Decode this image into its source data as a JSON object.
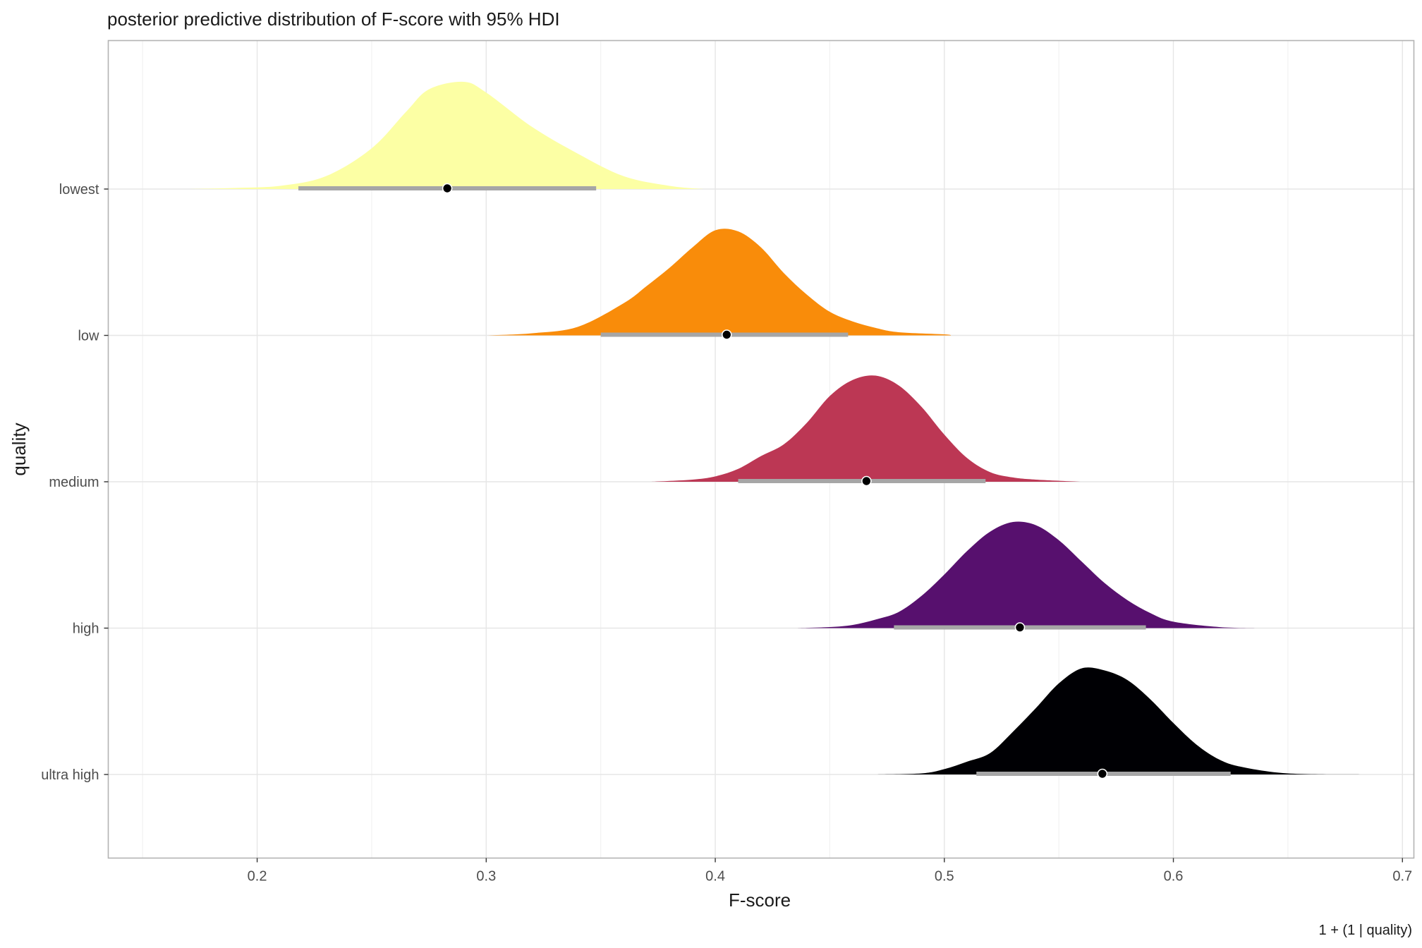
{
  "chart_data": {
    "type": "ridgeline",
    "title": "posterior predictive distribution of F-score with 95% HDI",
    "xlabel": "F-score",
    "ylabel": "quality",
    "caption": "1 + (1 | quality)",
    "xlim": [
      0.135,
      0.705
    ],
    "x_ticks": [
      0.2,
      0.3,
      0.4,
      0.5,
      0.6,
      0.7
    ],
    "x_tick_labels": [
      "0.2",
      "0.3",
      "0.4",
      "0.5",
      "0.6",
      "0.7"
    ],
    "grid": true,
    "legend": "none",
    "categories": [
      "lowest",
      "low",
      "medium",
      "high",
      "ultra high"
    ],
    "series": [
      {
        "name": "lowest",
        "color": "#FCFFA4",
        "density": {
          "x": [
            0.17,
            0.19,
            0.21,
            0.23,
            0.25,
            0.265,
            0.275,
            0.29,
            0.3,
            0.32,
            0.34,
            0.36,
            0.38,
            0.395
          ],
          "y": [
            0,
            0.01,
            0.03,
            0.12,
            0.38,
            0.72,
            0.93,
            1.0,
            0.9,
            0.58,
            0.33,
            0.12,
            0.03,
            0
          ]
        },
        "point": 0.283,
        "hdi": [
          0.218,
          0.348
        ]
      },
      {
        "name": "low",
        "color": "#F98C0A",
        "density": {
          "x": [
            0.3,
            0.32,
            0.34,
            0.36,
            0.37,
            0.38,
            0.39,
            0.4,
            0.41,
            0.42,
            0.43,
            0.44,
            0.45,
            0.46,
            0.47,
            0.48,
            0.5,
            0.503
          ],
          "y": [
            0,
            0.02,
            0.08,
            0.3,
            0.46,
            0.63,
            0.82,
            0.98,
            0.97,
            0.82,
            0.58,
            0.38,
            0.22,
            0.13,
            0.07,
            0.03,
            0.01,
            0
          ]
        },
        "point": 0.405,
        "hdi": [
          0.35,
          0.458
        ]
      },
      {
        "name": "medium",
        "color": "#BC3754",
        "density": {
          "x": [
            0.372,
            0.39,
            0.4,
            0.41,
            0.42,
            0.43,
            0.44,
            0.45,
            0.46,
            0.47,
            0.48,
            0.49,
            0.5,
            0.51,
            0.52,
            0.53,
            0.54,
            0.56
          ],
          "y": [
            0,
            0.02,
            0.05,
            0.12,
            0.24,
            0.35,
            0.55,
            0.8,
            0.95,
            0.99,
            0.9,
            0.7,
            0.44,
            0.22,
            0.09,
            0.04,
            0.02,
            0
          ]
        },
        "point": 0.466,
        "hdi": [
          0.41,
          0.518
        ]
      },
      {
        "name": "high",
        "color": "#57106E",
        "density": {
          "x": [
            0.435,
            0.45,
            0.46,
            0.47,
            0.48,
            0.49,
            0.5,
            0.51,
            0.52,
            0.53,
            0.54,
            0.55,
            0.56,
            0.57,
            0.58,
            0.59,
            0.6,
            0.62,
            0.636
          ],
          "y": [
            0,
            0.01,
            0.03,
            0.08,
            0.15,
            0.3,
            0.5,
            0.72,
            0.9,
            0.99,
            0.96,
            0.82,
            0.62,
            0.42,
            0.26,
            0.14,
            0.06,
            0.01,
            0
          ]
        },
        "point": 0.533,
        "hdi": [
          0.478,
          0.588
        ]
      },
      {
        "name": "ultra high",
        "color": "#000004",
        "density": {
          "x": [
            0.47,
            0.49,
            0.5,
            0.51,
            0.52,
            0.53,
            0.54,
            0.55,
            0.56,
            0.57,
            0.58,
            0.59,
            0.6,
            0.61,
            0.62,
            0.63,
            0.65,
            0.682
          ],
          "y": [
            0,
            0.01,
            0.05,
            0.12,
            0.2,
            0.4,
            0.62,
            0.85,
            0.99,
            0.97,
            0.88,
            0.7,
            0.48,
            0.28,
            0.14,
            0.07,
            0.01,
            0
          ]
        },
        "point": 0.569,
        "hdi": [
          0.514,
          0.625
        ]
      }
    ]
  }
}
